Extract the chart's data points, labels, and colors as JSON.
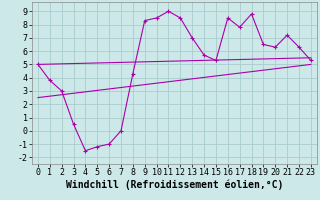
{
  "title": "",
  "xlabel": "Windchill (Refroidissement éolien,°C)",
  "ylabel": "",
  "background_color": "#cce8e8",
  "grid_color": "#aacccc",
  "line_color": "#aa00aa",
  "xlim": [
    -0.5,
    23.5
  ],
  "ylim": [
    -2.5,
    9.7
  ],
  "yticks": [
    -2,
    -1,
    0,
    1,
    2,
    3,
    4,
    5,
    6,
    7,
    8,
    9
  ],
  "xticks": [
    0,
    1,
    2,
    3,
    4,
    5,
    6,
    7,
    8,
    9,
    10,
    11,
    12,
    13,
    14,
    15,
    16,
    17,
    18,
    19,
    20,
    21,
    22,
    23
  ],
  "line1_x": [
    0,
    1,
    2,
    3,
    4,
    5,
    6,
    7,
    8,
    9,
    10,
    11,
    12,
    13,
    14,
    15,
    16,
    17,
    18,
    19,
    20,
    21,
    22,
    23
  ],
  "line1_y": [
    5.0,
    3.8,
    3.0,
    0.5,
    -1.5,
    -1.2,
    -1.0,
    0.0,
    4.3,
    8.3,
    8.5,
    9.0,
    8.5,
    7.0,
    5.7,
    5.3,
    8.5,
    7.8,
    8.8,
    6.5,
    6.3,
    7.2,
    6.3,
    5.3
  ],
  "line2_x": [
    0,
    23
  ],
  "line2_y": [
    5.0,
    5.5
  ],
  "line3_x": [
    0,
    23
  ],
  "line3_y": [
    2.5,
    5.0
  ],
  "label_fontsize": 7,
  "tick_fontsize": 6
}
